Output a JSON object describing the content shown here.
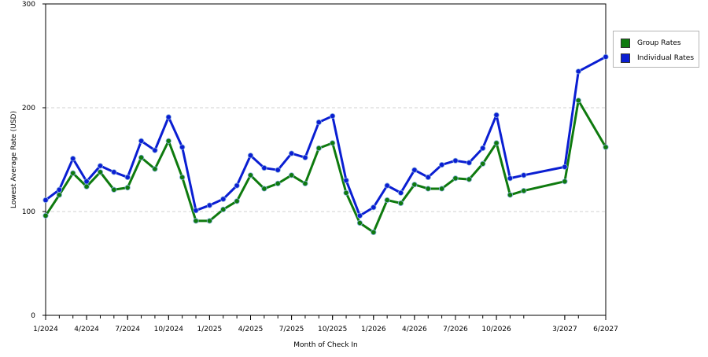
{
  "chart_data": {
    "type": "line",
    "xlabel": "Month of Check In",
    "ylabel": "Lowest Average Rate (USD)",
    "ylim": [
      0,
      300
    ],
    "yticks": [
      "0",
      "100",
      "200",
      "300"
    ],
    "grid": "horizontal dashed",
    "legend_position": "right-top",
    "x_tick_labels": [
      "1/2024",
      "4/2024",
      "7/2024",
      "10/2024",
      "1/2025",
      "4/2025",
      "7/2025",
      "10/2025",
      "1/2026",
      "4/2026",
      "7/2026",
      "10/2026",
      "3/2027",
      "6/2027"
    ],
    "x": [
      "2024-01",
      "2024-02",
      "2024-03",
      "2024-04",
      "2024-05",
      "2024-06",
      "2024-07",
      "2024-08",
      "2024-09",
      "2024-10",
      "2024-11",
      "2024-12",
      "2025-01",
      "2025-02",
      "2025-03",
      "2025-04",
      "2025-05",
      "2025-06",
      "2025-07",
      "2025-08",
      "2025-09",
      "2025-10",
      "2025-11",
      "2025-12",
      "2026-01",
      "2026-02",
      "2026-03",
      "2026-04",
      "2026-05",
      "2026-06",
      "2026-07",
      "2026-08",
      "2026-09",
      "2026-10",
      "2026-11",
      "2026-12",
      "2027-03",
      "2027-04",
      "2027-06"
    ],
    "series": [
      {
        "name": "Group Rates",
        "color": "#0e7a0e",
        "values": [
          96,
          116,
          137,
          124,
          138,
          121,
          123,
          152,
          141,
          168,
          133,
          91,
          91,
          102,
          110,
          135,
          122,
          127,
          135,
          127,
          161,
          166,
          118,
          89,
          80,
          111,
          108,
          126,
          122,
          122,
          132,
          131,
          146,
          166,
          116,
          120,
          129,
          207,
          162
        ]
      },
      {
        "name": "Individual Rates",
        "color": "#0a1ed2",
        "values": [
          111,
          121,
          151,
          129,
          144,
          138,
          133,
          168,
          159,
          191,
          162,
          101,
          106,
          112,
          125,
          154,
          142,
          140,
          156,
          152,
          186,
          192,
          130,
          96,
          104,
          125,
          118,
          140,
          133,
          145,
          149,
          147,
          161,
          193,
          132,
          135,
          143,
          235,
          249
        ]
      }
    ]
  }
}
